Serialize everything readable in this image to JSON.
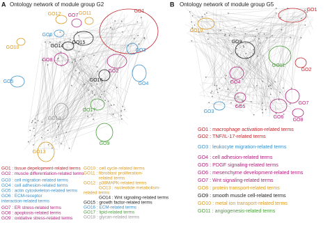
{
  "panel_a": {
    "letter": "A",
    "title": "Ontology network of module group G2",
    "node_labels": [
      "GO1",
      "GO2",
      "GO3",
      "GO4",
      "GO5",
      "GO6",
      "GO7",
      "GO8",
      "GO9",
      "GO10",
      "GO11",
      "GO12",
      "GO13",
      "GO14",
      "GO15",
      "GO16",
      "GO17",
      "GO18"
    ],
    "legend_left": [
      "GO1 : tissue depelopment-related terms",
      "GO2 : muscle differentiation-related terms",
      "GO3 : cell migration-related terms",
      "GO4 : cell adhesion-related terms",
      "GO5 : actin cytoskeleton-related terms",
      "GO6 : ECM-receptor",
      "interaction-related terms",
      "GO7 : ER stress-related terms",
      "GO8 : apoptosis-related terms",
      "GO9 : oxidative stress-related terms"
    ],
    "legend_right": [
      "GO10 : cell cycle-related terms",
      "GO11 : fibroblast proliferation-",
      "related terms",
      "GO12 : p38MAPK-related terms",
      "GO13 : nucleotide metabolism-",
      "related terms",
      "GO14 : Wnt signaling-related terms",
      "GO15 : growth factor-related terms",
      "GO16 : ECM-related terms",
      "GO17 : lipid-related terms",
      "GO18 : glycan-related terms"
    ]
  },
  "panel_b": {
    "letter": "B",
    "title": "Ontology network of module group G5",
    "node_labels": [
      "GO1",
      "GO2",
      "GO3",
      "GO4",
      "GO5",
      "GO6",
      "GO7",
      "GO8",
      "GO9",
      "GO10",
      "GO11"
    ],
    "legend": [
      "GO1 : macrophage activation-related terms",
      "GO2 : TNF/IL-17-related terms",
      "GO3 : leukocyte migration-related terms",
      "GO4 : cell adhesion-related terms",
      "GO5 : PDGF signaling-related terms",
      "GO6 : mesenchyme development-related terms",
      "GO7 : Wnt signaling-related terms",
      "GO8 : protein transport-related terms",
      "GO9 : smooth muscle cell-related terms",
      "GO10 : metal ion transport-related terms",
      "GO11 : angiogenesis-related terms"
    ]
  }
}
